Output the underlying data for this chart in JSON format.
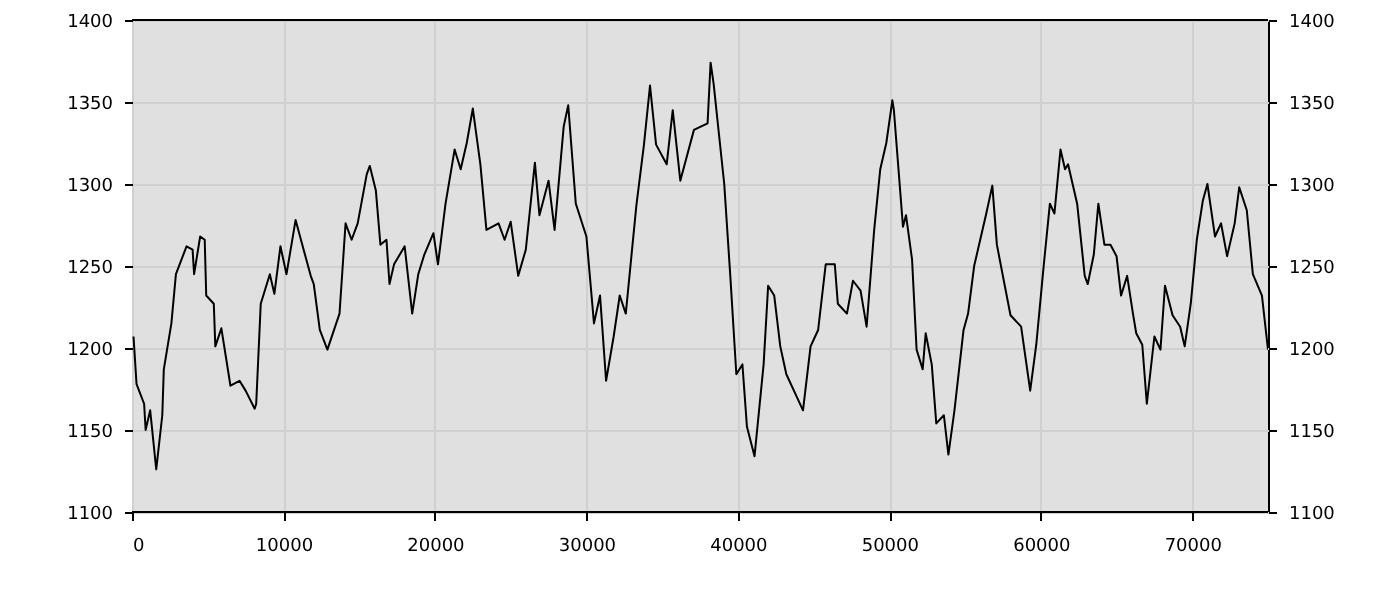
{
  "chart_data": {
    "type": "line",
    "color": "#000000",
    "grid": true,
    "x": [
      100,
      300,
      800,
      900,
      1200,
      1600,
      2000,
      2100,
      2600,
      2900,
      3600,
      4000,
      4100,
      4500,
      4800,
      4900,
      5400,
      5500,
      5900,
      6500,
      7100,
      7500,
      8100,
      8200,
      8500,
      9100,
      9400,
      9800,
      10200,
      10800,
      11800,
      12000,
      12400,
      12900,
      13700,
      14100,
      14500,
      14900,
      15500,
      15700,
      16100,
      16400,
      16800,
      17000,
      17300,
      18000,
      18500,
      18900,
      19300,
      19900,
      20200,
      20700,
      21300,
      21700,
      22100,
      22500,
      23000,
      23400,
      24200,
      24600,
      25000,
      25500,
      26000,
      26600,
      26900,
      27500,
      27900,
      28500,
      28800,
      29300,
      30000,
      30500,
      30900,
      31300,
      31800,
      32200,
      32600,
      33300,
      33800,
      34200,
      34600,
      35300,
      35700,
      36200,
      37100,
      38000,
      38200,
      38400,
      39100,
      39500,
      39900,
      40300,
      40600,
      41100,
      41700,
      42000,
      42400,
      42800,
      43200,
      43700,
      44300,
      44800,
      45300,
      45800,
      46400,
      46600,
      47200,
      47600,
      48100,
      48500,
      49000,
      49400,
      49800,
      50200,
      50300,
      50900,
      51100,
      51500,
      51800,
      52200,
      52400,
      52800,
      53100,
      53600,
      53900,
      54300,
      54900,
      55200,
      55600,
      56000,
      56400,
      56800,
      57100,
      57600,
      58000,
      58700,
      59300,
      59700,
      60200,
      60600,
      60900,
      61300,
      61600,
      61800,
      62400,
      62900,
      63100,
      63500,
      63800,
      64200,
      64600,
      65000,
      65300,
      65700,
      66100,
      66300,
      66700,
      67000,
      67500,
      67900,
      68200,
      68700,
      69200,
      69500,
      69900,
      70300,
      70700,
      71000,
      71500,
      71900,
      72300,
      72800,
      73100,
      73600,
      74000,
      74600,
      75000
    ],
    "values": [
      1207,
      1178,
      1166,
      1150,
      1162,
      1126,
      1159,
      1187,
      1215,
      1245,
      1262,
      1260,
      1245,
      1268,
      1266,
      1232,
      1227,
      1201,
      1212,
      1177,
      1180,
      1174,
      1163,
      1166,
      1227,
      1245,
      1233,
      1262,
      1245,
      1278,
      1244,
      1239,
      1211,
      1199,
      1221,
      1276,
      1266,
      1276,
      1306,
      1311,
      1296,
      1263,
      1266,
      1239,
      1251,
      1262,
      1221,
      1245,
      1257,
      1270,
      1251,
      1288,
      1321,
      1309,
      1325,
      1346,
      1312,
      1272,
      1276,
      1266,
      1277,
      1244,
      1260,
      1313,
      1281,
      1302,
      1272,
      1335,
      1348,
      1288,
      1268,
      1215,
      1232,
      1180,
      1207,
      1232,
      1221,
      1287,
      1324,
      1360,
      1324,
      1312,
      1345,
      1302,
      1333,
      1337,
      1374,
      1361,
      1300,
      1244,
      1184,
      1190,
      1152,
      1134,
      1190,
      1238,
      1232,
      1201,
      1184,
      1174,
      1162,
      1201,
      1211,
      1251,
      1251,
      1227,
      1221,
      1241,
      1235,
      1213,
      1272,
      1309,
      1325,
      1351,
      1345,
      1274,
      1281,
      1254,
      1199,
      1187,
      1209,
      1190,
      1154,
      1159,
      1135,
      1162,
      1211,
      1221,
      1250,
      1266,
      1282,
      1299,
      1263,
      1239,
      1220,
      1213,
      1174,
      1202,
      1251,
      1288,
      1282,
      1321,
      1309,
      1312,
      1288,
      1244,
      1239,
      1257,
      1288,
      1263,
      1263,
      1256,
      1232,
      1244,
      1220,
      1209,
      1202,
      1166,
      1207,
      1199,
      1238,
      1220,
      1213,
      1201,
      1227,
      1266,
      1290,
      1300,
      1268,
      1276,
      1256,
      1276,
      1298,
      1284,
      1245,
      1232,
      1199
    ],
    "xlim": [
      0,
      75000
    ],
    "xticks": [
      0,
      10000,
      20000,
      30000,
      40000,
      50000,
      60000,
      70000
    ],
    "ylim": [
      1100,
      1400
    ],
    "yticks": [
      1100,
      1150,
      1200,
      1250,
      1300,
      1350,
      1400
    ],
    "y2lim": [
      1100,
      1400
    ],
    "y2ticks": [
      1100,
      1150,
      1200,
      1250,
      1300,
      1350,
      1400
    ]
  }
}
